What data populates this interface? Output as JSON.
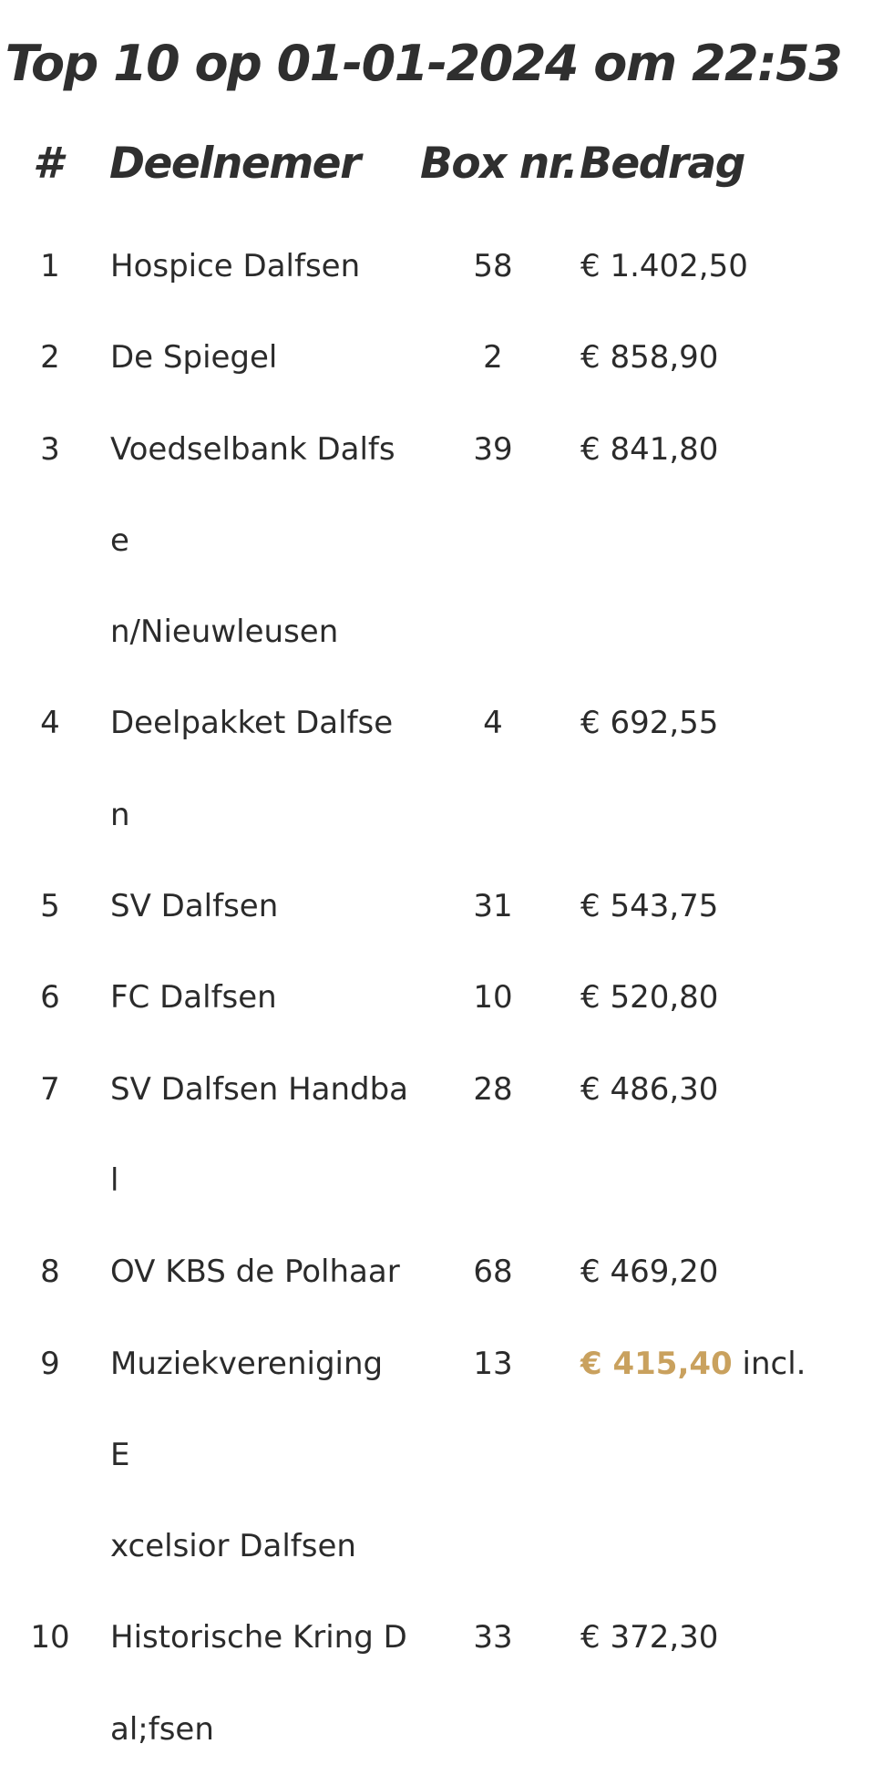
{
  "title": "Top 10 op 01-01-2024 om 22:53",
  "headers": {
    "rank": "#",
    "participant": "Deelnemer",
    "box": "Box nr.",
    "amount": "Bedrag"
  },
  "rows": [
    {
      "rank": "1",
      "name_lines": [
        "Hospice Dalfsen"
      ],
      "box": "58",
      "amount": "€ 1.402,50",
      "suffix": "",
      "highlight": false
    },
    {
      "rank": "2",
      "name_lines": [
        "De Spiegel"
      ],
      "box": "2",
      "amount": "€ 858,90",
      "suffix": "",
      "highlight": false
    },
    {
      "rank": "3",
      "name_lines": [
        "Voedselbank Dalfse",
        "n/Nieuwleusen"
      ],
      "box": "39",
      "amount": "€ 841,80",
      "suffix": "",
      "highlight": false
    },
    {
      "rank": "4",
      "name_lines": [
        "Deelpakket Dalfsen"
      ],
      "box": "4",
      "amount": "€ 692,55",
      "suffix": "",
      "highlight": false
    },
    {
      "rank": "5",
      "name_lines": [
        "SV Dalfsen"
      ],
      "box": "31",
      "amount": "€ 543,75",
      "suffix": "",
      "highlight": false
    },
    {
      "rank": "6",
      "name_lines": [
        "FC Dalfsen"
      ],
      "box": "10",
      "amount": "€ 520,80",
      "suffix": "",
      "highlight": false
    },
    {
      "rank": "7",
      "name_lines": [
        "SV Dalfsen Handbal"
      ],
      "box": "28",
      "amount": "€ 486,30",
      "suffix": "",
      "highlight": false
    },
    {
      "rank": "8",
      "name_lines": [
        "OV KBS de Polhaar"
      ],
      "box": "68",
      "amount": "€ 469,20",
      "suffix": "",
      "highlight": false
    },
    {
      "rank": "9",
      "name_lines": [
        "Muziekvereniging E",
        "xcelsior Dalfsen"
      ],
      "box": "13",
      "amount": "€ 415,40",
      "suffix": " incl.",
      "highlight": true
    },
    {
      "rank": "10",
      "name_lines": [
        "Historische Kring D",
        "al;fsen"
      ],
      "box": "33",
      "amount": "€ 372,30",
      "suffix": "",
      "highlight": false
    }
  ],
  "colors": {
    "text": "#2b2b2b",
    "highlight": "#c9a15e",
    "background": "#ffffff"
  }
}
